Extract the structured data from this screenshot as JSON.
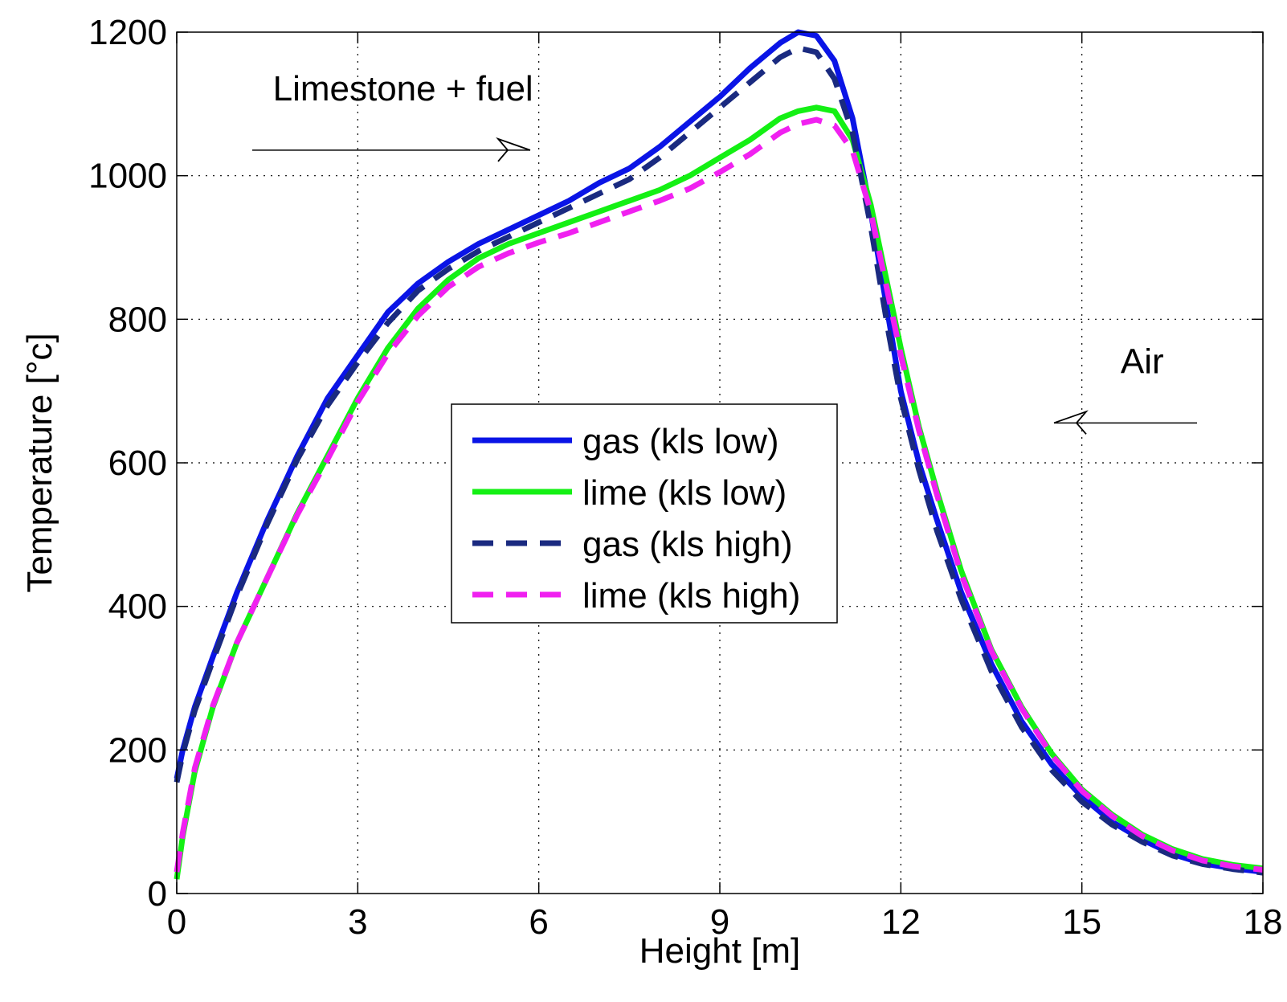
{
  "chart_data": {
    "type": "line",
    "title": "",
    "xlabel": "Height [m]",
    "ylabel": "Temperature [°c]",
    "xlim": [
      0,
      18
    ],
    "ylim": [
      0,
      1200
    ],
    "xticks": [
      0,
      3,
      6,
      9,
      12,
      15,
      18
    ],
    "yticks": [
      0,
      200,
      400,
      600,
      800,
      1000,
      1200
    ],
    "xtick_labels": [
      "0",
      "3",
      "6",
      "9",
      "12",
      "15",
      "18"
    ],
    "ytick_labels": [
      "0",
      "200",
      "400",
      "600",
      "800",
      "1000",
      "1200"
    ],
    "grid": true,
    "legend_position": "center",
    "annotations": [
      {
        "text": "Limestone + fuel",
        "arrow": "right",
        "x": 3.75,
        "y": 1105
      },
      {
        "text": "Air",
        "arrow": "left",
        "x": 16.0,
        "y": 725
      }
    ],
    "series": [
      {
        "name": "gas (kls low)",
        "color": "#0a14e6",
        "style": "solid",
        "x": [
          0,
          0.1,
          0.3,
          0.6,
          1.0,
          1.5,
          2.0,
          2.5,
          3.0,
          3.5,
          4.0,
          4.5,
          5.0,
          5.5,
          6.0,
          6.5,
          7.0,
          7.5,
          8.0,
          8.5,
          9.0,
          9.5,
          10.0,
          10.3,
          10.6,
          10.9,
          11.2,
          11.5,
          11.8,
          12.0,
          12.3,
          12.6,
          13.0,
          13.5,
          14.0,
          14.5,
          15.0,
          15.5,
          16.0,
          16.5,
          17.0,
          17.5,
          18.0
        ],
        "y": [
          160,
          200,
          260,
          330,
          420,
          520,
          610,
          690,
          750,
          810,
          850,
          880,
          905,
          925,
          945,
          965,
          990,
          1010,
          1040,
          1075,
          1110,
          1150,
          1185,
          1200,
          1195,
          1160,
          1080,
          950,
          800,
          700,
          600,
          520,
          420,
          320,
          240,
          180,
          135,
          100,
          75,
          55,
          42,
          35,
          30
        ]
      },
      {
        "name": "lime (kls low)",
        "color": "#14f014",
        "style": "solid",
        "x": [
          0,
          0.1,
          0.3,
          0.6,
          1.0,
          1.5,
          2.0,
          2.5,
          3.0,
          3.5,
          4.0,
          4.5,
          5.0,
          5.5,
          6.0,
          6.5,
          7.0,
          7.5,
          8.0,
          8.5,
          9.0,
          9.5,
          10.0,
          10.3,
          10.6,
          10.9,
          11.2,
          11.5,
          11.8,
          12.0,
          12.3,
          12.6,
          13.0,
          13.5,
          14.0,
          14.5,
          15.0,
          15.5,
          16.0,
          16.5,
          17.0,
          17.5,
          18.0
        ],
        "y": [
          20,
          80,
          170,
          260,
          350,
          440,
          530,
          610,
          690,
          760,
          815,
          855,
          885,
          905,
          920,
          935,
          950,
          965,
          980,
          1000,
          1025,
          1050,
          1080,
          1090,
          1095,
          1090,
          1050,
          960,
          840,
          760,
          650,
          560,
          450,
          340,
          260,
          195,
          145,
          110,
          82,
          62,
          48,
          40,
          35
        ]
      },
      {
        "name": "gas (kls high)",
        "color": "#1a2a80",
        "style": "dashed",
        "x": [
          0,
          0.1,
          0.3,
          0.6,
          1.0,
          1.5,
          2.0,
          2.5,
          3.0,
          3.5,
          4.0,
          4.5,
          5.0,
          5.5,
          6.0,
          6.5,
          7.0,
          7.5,
          8.0,
          8.5,
          9.0,
          9.5,
          10.0,
          10.3,
          10.6,
          10.9,
          11.2,
          11.5,
          11.8,
          12.0,
          12.3,
          12.6,
          13.0,
          13.5,
          14.0,
          14.5,
          15.0,
          15.5,
          16.0,
          16.5,
          17.0,
          17.5,
          18.0
        ],
        "y": [
          155,
          195,
          255,
          325,
          415,
          515,
          605,
          680,
          740,
          795,
          840,
          870,
          895,
          915,
          935,
          955,
          975,
          995,
          1025,
          1060,
          1095,
          1130,
          1165,
          1178,
          1172,
          1135,
          1060,
          930,
          780,
          690,
          590,
          505,
          410,
          310,
          232,
          172,
          128,
          96,
          72,
          53,
          41,
          34,
          29
        ]
      },
      {
        "name": "lime (kls high)",
        "color": "#f020f0",
        "style": "dashed",
        "x": [
          0,
          0.1,
          0.3,
          0.6,
          1.0,
          1.5,
          2.0,
          2.5,
          3.0,
          3.5,
          4.0,
          4.5,
          5.0,
          5.5,
          6.0,
          6.5,
          7.0,
          7.5,
          8.0,
          8.5,
          9.0,
          9.5,
          10.0,
          10.3,
          10.6,
          10.9,
          11.2,
          11.5,
          11.8,
          12.0,
          12.3,
          12.6,
          13.0,
          13.5,
          14.0,
          14.5,
          15.0,
          15.5,
          16.0,
          16.5,
          17.0,
          17.5,
          18.0
        ],
        "y": [
          30,
          85,
          175,
          262,
          350,
          440,
          528,
          605,
          685,
          752,
          805,
          845,
          873,
          892,
          907,
          920,
          935,
          950,
          965,
          982,
          1005,
          1030,
          1060,
          1072,
          1078,
          1070,
          1035,
          950,
          830,
          750,
          645,
          555,
          445,
          338,
          258,
          193,
          143,
          108,
          80,
          60,
          46,
          38,
          33
        ]
      }
    ]
  }
}
